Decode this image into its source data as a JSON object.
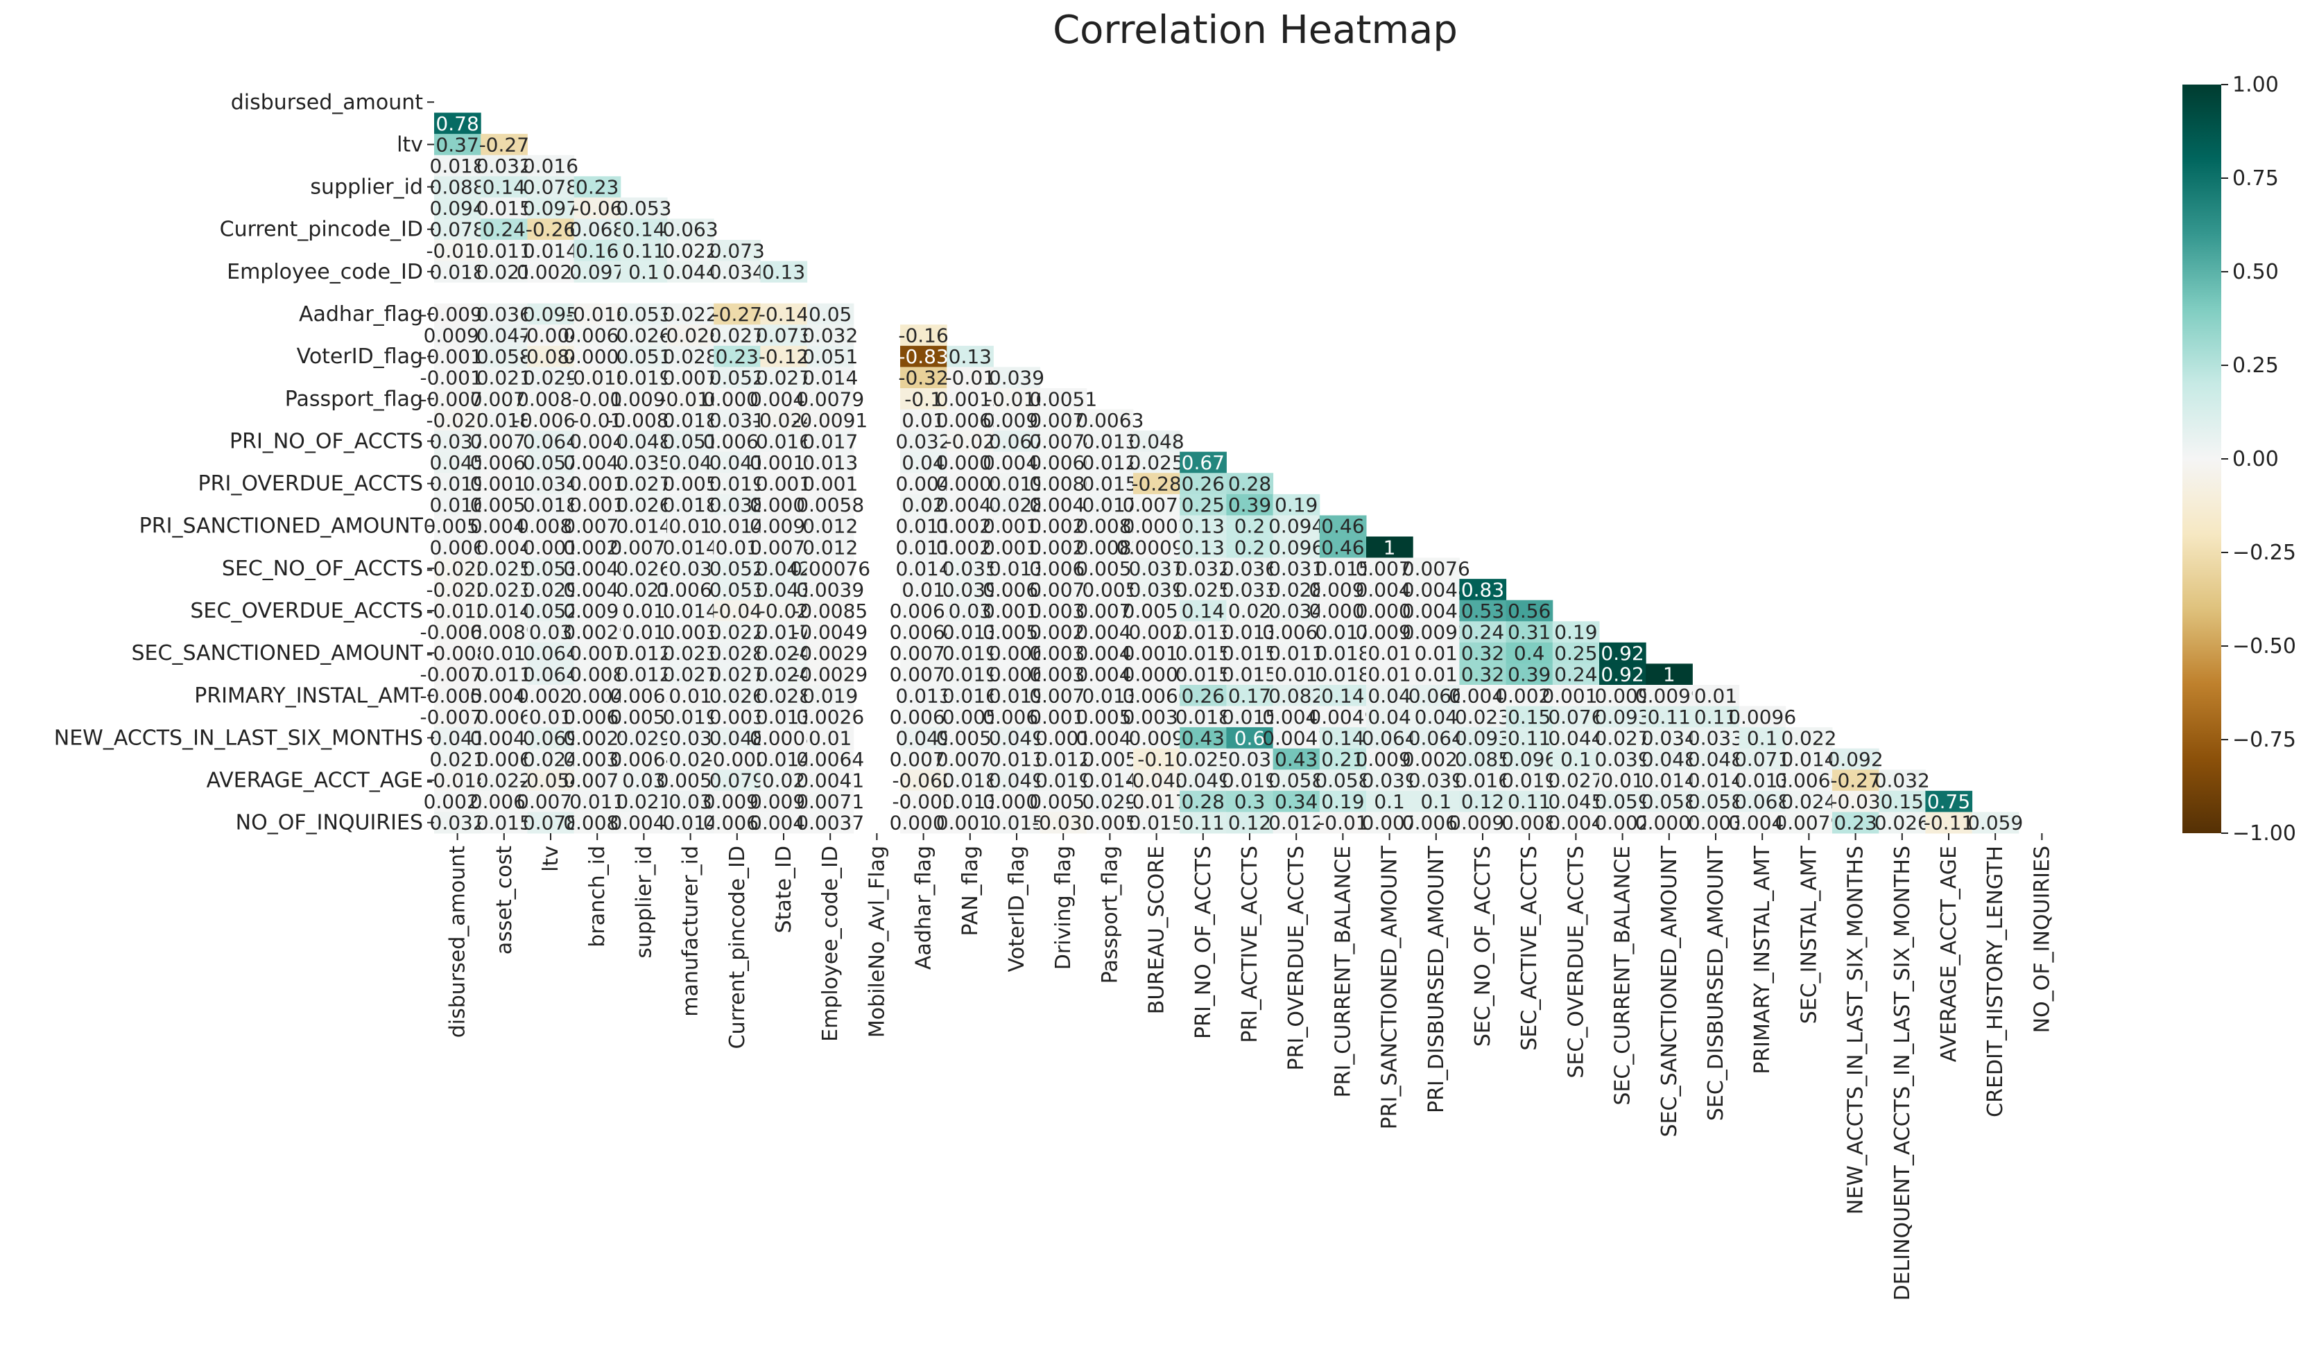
{
  "chart_data": {
    "type": "heatmap",
    "title": "Correlation Heatmap",
    "x_labels": [
      "disbursed_amount",
      "asset_cost",
      "ltv",
      "branch_id",
      "supplier_id",
      "manufacturer_id",
      "Current_pincode_ID",
      "State_ID",
      "Employee_code_ID",
      "MobileNo_Avl_Flag",
      "Aadhar_flag",
      "PAN_flag",
      "VoterID_flag",
      "Driving_flag",
      "Passport_flag",
      "BUREAU_SCORE",
      "PRI_NO_OF_ACCTS",
      "PRI_ACTIVE_ACCTS",
      "PRI_OVERDUE_ACCTS",
      "PRI_CURRENT_BALANCE",
      "PRI_SANCTIONED_AMOUNT",
      "PRI_DISBURSED_AMOUNT",
      "SEC_NO_OF_ACCTS",
      "SEC_ACTIVE_ACCTS",
      "SEC_OVERDUE_ACCTS",
      "SEC_CURRENT_BALANCE",
      "SEC_SANCTIONED_AMOUNT",
      "SEC_DISBURSED_AMOUNT",
      "PRIMARY_INSTAL_AMT",
      "SEC_INSTAL_AMT",
      "NEW_ACCTS_IN_LAST_SIX_MONTHS",
      "DELINQUENT_ACCTS_IN_LAST_SIX_MONTHS",
      "AVERAGE_ACCT_AGE",
      "CREDIT_HISTORY_LENGTH",
      "NO_OF_INQUIRIES"
    ],
    "y_labels": [
      "disbursed_amount",
      null,
      "ltv",
      null,
      "supplier_id",
      null,
      "Current_pincode_ID",
      null,
      "Employee_code_ID",
      null,
      "Aadhar_flag",
      null,
      "VoterID_flag",
      null,
      "Passport_flag",
      null,
      "PRI_NO_OF_ACCTS",
      null,
      "PRI_OVERDUE_ACCTS",
      null,
      "PRI_SANCTIONED_AMOUNT",
      null,
      "SEC_NO_OF_ACCTS",
      null,
      "SEC_OVERDUE_ACCTS",
      null,
      "SEC_SANCTIONED_AMOUNT",
      null,
      "PRIMARY_INSTAL_AMT",
      null,
      "NEW_ACCTS_IN_LAST_SIX_MONTHS",
      null,
      "AVERAGE_ACCT_AGE",
      null,
      "NO_OF_INQUIRIES"
    ],
    "z": [
      [],
      [
        0.78
      ],
      [
        0.37,
        -0.27
      ],
      [
        0.018,
        0.032,
        0.016
      ],
      [
        0.088,
        0.14,
        0.078,
        0.23
      ],
      [
        0.094,
        0.015,
        0.097,
        -0.06,
        0.053
      ],
      [
        0.078,
        0.24,
        -0.26,
        0.068,
        0.14,
        0.063
      ],
      [
        -0.019,
        0.011,
        0.014,
        0.16,
        0.11,
        0.022,
        0.073
      ],
      [
        0.018,
        0.021,
        0.0028,
        0.097,
        0.1,
        0.044,
        0.034,
        0.13
      ],
      [
        null,
        null,
        null,
        null,
        null,
        null,
        null,
        null,
        null
      ],
      [
        -0.0093,
        0.036,
        0.095,
        -0.018,
        0.053,
        0.022,
        -0.27,
        -0.14,
        0.05,
        null
      ],
      [
        0.0099,
        0.047,
        -0.004,
        0.0068,
        0.026,
        -0.028,
        0.027,
        0.073,
        0.032,
        null,
        -0.16
      ],
      [
        -0.0019,
        0.058,
        -0.084,
        0.0004,
        0.051,
        0.028,
        0.23,
        -0.12,
        0.051,
        null,
        -0.83,
        0.13
      ],
      [
        -0.0019,
        0.021,
        0.029,
        -0.018,
        0.019,
        0.007,
        0.052,
        0.027,
        0.014,
        null,
        -0.32,
        -0.01,
        0.039
      ],
      [
        -0.0076,
        0.0075,
        0.0085,
        -0.01,
        0.0093,
        -0.016,
        0.0007,
        0.0047,
        0.0079,
        null,
        -0.1,
        0.0012,
        -0.016,
        0.0051
      ],
      [
        -0.021,
        0.018,
        -0.0069,
        -0.01,
        -0.0081,
        0.018,
        0.031,
        -0.024,
        -0.0091,
        null,
        0.01,
        0.0062,
        0.0096,
        0.0071,
        0.0063
      ],
      [
        0.037,
        0.0071,
        0.064,
        0.004,
        0.048,
        0.051,
        0.0067,
        0.016,
        0.017,
        null,
        0.032,
        -0.02,
        0.067,
        0.0074,
        0.013,
        0.048
      ],
      [
        0.045,
        0.0062,
        0.057,
        0.0044,
        0.035,
        0.04,
        0.041,
        0.0019,
        0.013,
        null,
        0.04,
        0.0009,
        0.0048,
        0.0066,
        0.012,
        0.025,
        0.67
      ],
      [
        0.019,
        0.0018,
        0.034,
        0.001,
        0.027,
        0.005,
        0.019,
        0.001,
        0.001,
        null,
        0.004,
        0.0009,
        0.019,
        0.0086,
        0.015,
        -0.28,
        0.26,
        0.28
      ],
      [
        0.016,
        0.0057,
        0.018,
        0.001,
        0.026,
        0.018,
        0.038,
        0.0009,
        0.0058,
        null,
        0.02,
        0.0048,
        0.028,
        0.0047,
        0.017,
        0.0077,
        0.25,
        0.39,
        0.19
      ],
      [
        0.0058,
        0.0045,
        0.0081,
        0.0071,
        0.014,
        0.01,
        0.014,
        0.0099,
        0.012,
        null,
        0.011,
        0.0027,
        0.0014,
        0.0021,
        0.0082,
        0.0002,
        0.13,
        0.2,
        0.094,
        0.46
      ],
      [
        0.006,
        0.004,
        0.001,
        0.0028,
        0.0071,
        0.014,
        0.01,
        0.0074,
        0.012,
        null,
        0.011,
        0.0024,
        0.0014,
        0.0022,
        0.0082,
        0.00091,
        0.13,
        0.2,
        0.096,
        0.46,
        1
      ],
      [
        -0.023,
        0.025,
        0.053,
        0.0046,
        0.026,
        0.03,
        0.052,
        0.042,
        0.00076,
        null,
        0.014,
        0.035,
        0.013,
        0.0067,
        0.0055,
        0.037,
        0.032,
        0.036,
        0.031,
        0.015,
        0.0079,
        0.0076
      ],
      [
        -0.022,
        0.023,
        0.029,
        0.0042,
        0.021,
        0.0062,
        0.053,
        0.043,
        0.0039,
        null,
        0.01,
        0.039,
        0.0063,
        0.0079,
        0.005,
        0.039,
        0.025,
        0.033,
        0.028,
        0.0091,
        0.0049,
        0.0048,
        0.83
      ],
      [
        -0.012,
        0.014,
        0.052,
        0.0097,
        0.01,
        0.014,
        -0.04,
        -0.02,
        -0.0085,
        null,
        0.0063,
        0.03,
        0.0013,
        0.0037,
        0.0076,
        0.0051,
        0.14,
        0.02,
        0.034,
        0.0008,
        0.0008,
        0.0045,
        0.53,
        0.56
      ],
      [
        -0.0061,
        0.0089,
        0.03,
        0.0029,
        0.01,
        0.003,
        0.022,
        0.017,
        -0.0049,
        null,
        0.0064,
        0.013,
        0.0058,
        0.0027,
        0.0042,
        0.002,
        0.013,
        0.013,
        0.0069,
        0.017,
        0.0093,
        0.0092,
        0.24,
        0.31,
        0.19
      ],
      [
        -0.008,
        0.01,
        0.064,
        0.007,
        0.012,
        0.023,
        0.028,
        0.024,
        -0.0029,
        null,
        0.0075,
        0.019,
        0.006,
        0.0034,
        0.0047,
        0.0012,
        0.015,
        0.015,
        0.011,
        0.018,
        0.01,
        0.01,
        0.32,
        0.4,
        0.25,
        0.92
      ],
      [
        -0.0078,
        0.011,
        0.064,
        0.008,
        0.012,
        0.027,
        0.027,
        0.024,
        -0.0029,
        null,
        0.0075,
        0.019,
        0.006,
        0.0034,
        0.0047,
        0.0009,
        0.015,
        0.015,
        0.01,
        0.018,
        0.01,
        0.01,
        0.32,
        0.39,
        0.24,
        0.92,
        1
      ],
      [
        -0.0056,
        0.0043,
        0.0022,
        0.004,
        0.0063,
        0.01,
        0.026,
        0.028,
        0.019,
        null,
        0.013,
        0.016,
        0.019,
        0.0072,
        0.013,
        0.0066,
        0.26,
        0.17,
        0.082,
        0.14,
        0.04,
        0.066,
        0.0048,
        0.0024,
        0.0016,
        0.009,
        0.0099,
        0.01
      ],
      [
        -0.0073,
        0.006,
        0.01,
        0.0064,
        0.0059,
        0.019,
        0.003,
        0.013,
        0.0026,
        null,
        0.0068,
        0.005,
        0.0063,
        0.0014,
        0.0053,
        0.0033,
        0.018,
        0.015,
        0.0049,
        0.0049,
        0.04,
        0.04,
        0.023,
        0.15,
        0.076,
        0.093,
        0.11,
        0.11,
        0.0096
      ],
      [
        0.041,
        0.0043,
        0.069,
        0.0029,
        0.029,
        0.03,
        0.048,
        0.0008,
        0.01,
        null,
        0.049,
        0.0051,
        0.049,
        0.001,
        0.0049,
        0.009,
        0.43,
        0.6,
        0.0047,
        0.14,
        0.064,
        0.064,
        0.093,
        0.11,
        0.044,
        0.027,
        0.034,
        0.033,
        0.1,
        0.022
      ],
      [
        0.021,
        0.006,
        0.024,
        0.0039,
        0.0064,
        0.02,
        -0.002,
        0.014,
        0.0064,
        null,
        0.0078,
        0.0072,
        0.013,
        0.012,
        0.005,
        -0.1,
        0.025,
        0.03,
        0.43,
        0.21,
        0.0091,
        0.0023,
        0.085,
        0.096,
        0.1,
        0.039,
        0.048,
        0.048,
        0.071,
        0.014,
        0.092
      ],
      [
        -0.014,
        0.022,
        -0.054,
        0.0071,
        0.03,
        0.0059,
        0.079,
        0.02,
        0.0041,
        null,
        -0.062,
        0.018,
        0.049,
        0.019,
        0.014,
        -0.043,
        0.049,
        0.019,
        0.058,
        0.058,
        0.039,
        0.039,
        0.016,
        0.019,
        0.027,
        0.01,
        0.014,
        0.014,
        0.013,
        0.0066,
        -0.27,
        0.032
      ],
      [
        0.0023,
        0.0065,
        0.0071,
        0.011,
        0.021,
        0.03,
        0.0093,
        0.0092,
        0.0071,
        null,
        -0.003,
        0.013,
        0.0009,
        0.0052,
        0.029,
        -0.017,
        0.28,
        0.3,
        0.34,
        0.19,
        0.1,
        0.1,
        0.12,
        0.11,
        0.045,
        0.059,
        0.058,
        0.058,
        0.068,
        0.024,
        -0.03,
        0.15,
        0.75
      ],
      [
        0.032,
        0.015,
        0.078,
        0.0085,
        0.0048,
        0.014,
        0.0063,
        0.0046,
        0.0037,
        null,
        0.0008,
        0.0017,
        0.015,
        -0.031,
        0.005,
        0.015,
        0.11,
        0.12,
        0.012,
        -0.01,
        0.007,
        0.0068,
        0.0092,
        0.008,
        0.004,
        0.002,
        0.0009,
        0.003,
        0.0047,
        0.0079,
        0.23,
        0.026,
        -0.11,
        0.059
      ]
    ],
    "zlim": [
      -1,
      1
    ],
    "colorscale": [
      "#543005",
      "#8c510a",
      "#bf812d",
      "#dfc27d",
      "#f6e8c3",
      "#f5f5f5",
      "#c7eae5",
      "#80cdc1",
      "#35978f",
      "#01665e",
      "#003c30"
    ],
    "colorbar_ticks": [
      {
        "value": -1,
        "label": "−1.00"
      },
      {
        "value": -0.75,
        "label": "−0.75"
      },
      {
        "value": -0.5,
        "label": "−0.50"
      },
      {
        "value": -0.25,
        "label": "−0.25"
      },
      {
        "value": 0,
        "label": "0.00"
      },
      {
        "value": 0.25,
        "label": "0.25"
      },
      {
        "value": 0.5,
        "label": "0.50"
      },
      {
        "value": 0.75,
        "label": "0.75"
      },
      {
        "value": 1,
        "label": "1.00"
      }
    ]
  }
}
